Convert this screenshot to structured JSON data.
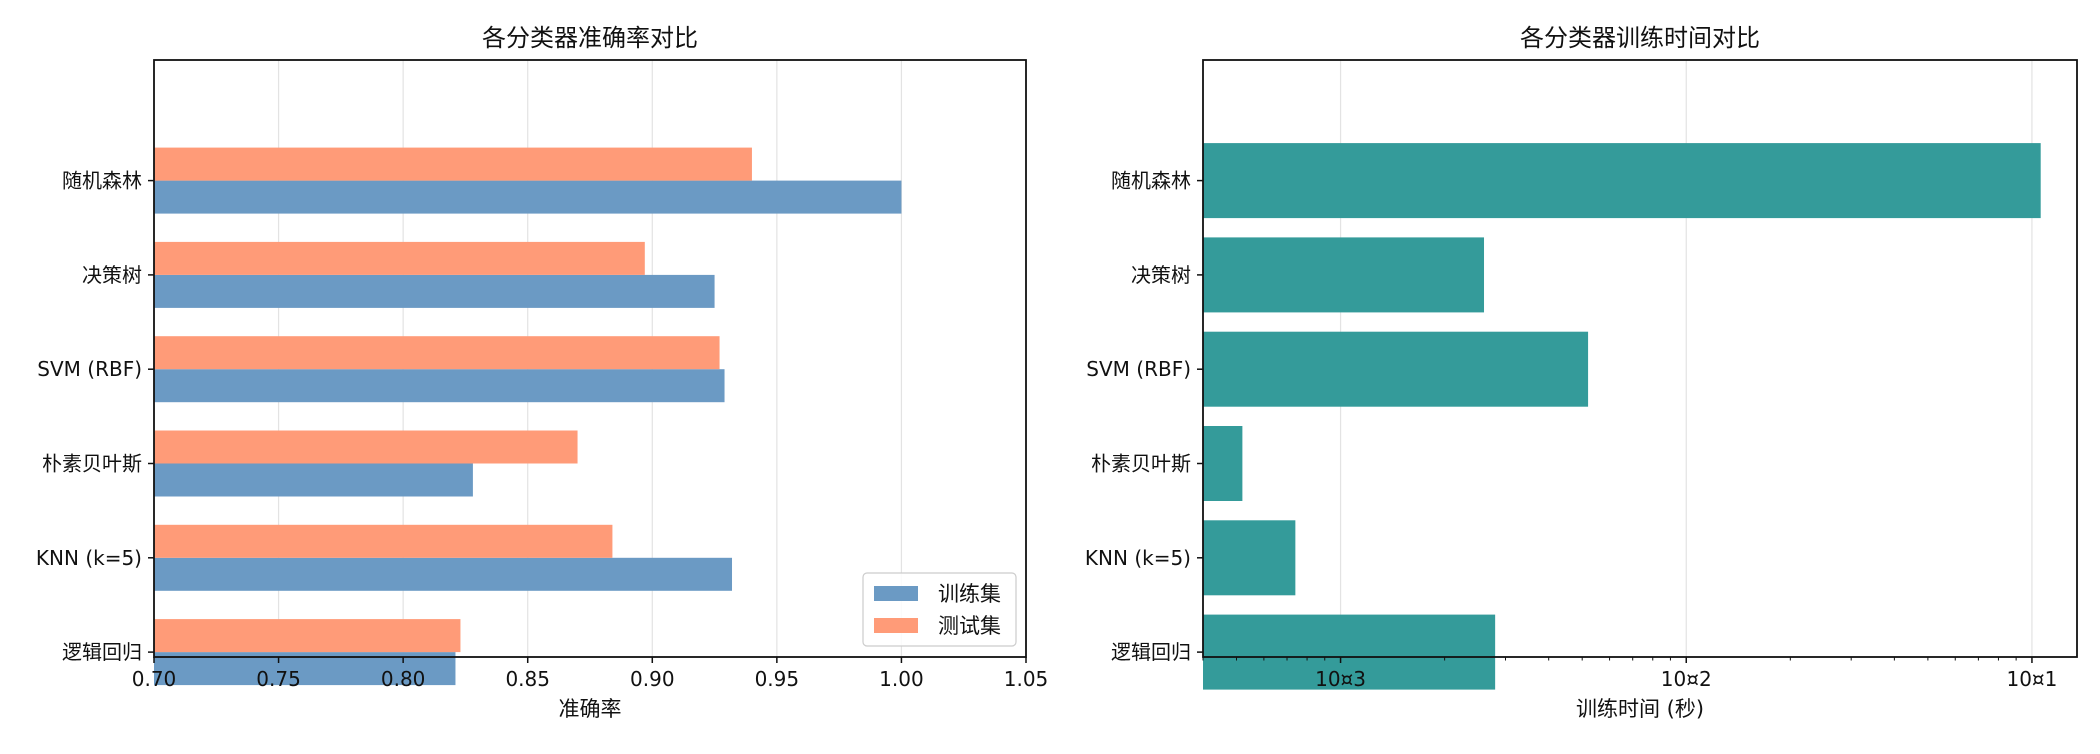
{
  "chart_data": [
    {
      "type": "bar",
      "orientation": "horizontal",
      "title": "各分类器准确率对比",
      "xlabel": "准确率",
      "ylabel": "",
      "categories": [
        "随机森林",
        "决策树",
        "SVM (RBF)",
        "朴素贝叶斯",
        "KNN (k=5)",
        "逻辑回归"
      ],
      "series": [
        {
          "name": "训练集",
          "color": "#6b9ac4",
          "values": [
            1.0,
            0.925,
            0.929,
            0.828,
            0.932,
            0.821
          ]
        },
        {
          "name": "测试集",
          "color": "#ff9b78",
          "values": [
            0.94,
            0.897,
            0.927,
            0.87,
            0.884,
            0.823
          ]
        }
      ],
      "xlim": [
        0.7,
        1.05
      ],
      "xticks": [
        "0.70",
        "0.75",
        "0.80",
        "0.85",
        "0.90",
        "0.95",
        "1.00",
        "1.05"
      ],
      "grid": "x",
      "legend": "lower-right"
    },
    {
      "type": "bar",
      "orientation": "horizontal",
      "title": "各分类器训练时间对比",
      "xlabel": "训练时间 (秒)",
      "ylabel": "",
      "xscale": "log",
      "categories": [
        "随机森林",
        "决策树",
        "SVM (RBF)",
        "朴素贝叶斯",
        "KNN (k=5)",
        "逻辑回归"
      ],
      "series": [
        {
          "name": "",
          "color": "#349b9a",
          "values": [
            0.106,
            0.0026,
            0.0052,
            0.00052,
            0.00074,
            0.0028
          ]
        }
      ],
      "xlim": [
        0.0004,
        0.135
      ],
      "xticks": [
        0.001,
        0.01,
        0.1
      ],
      "xtick_labels": [
        "10¤3",
        "10¤2",
        "10¤1"
      ],
      "grid": "x",
      "legend": "none"
    }
  ]
}
